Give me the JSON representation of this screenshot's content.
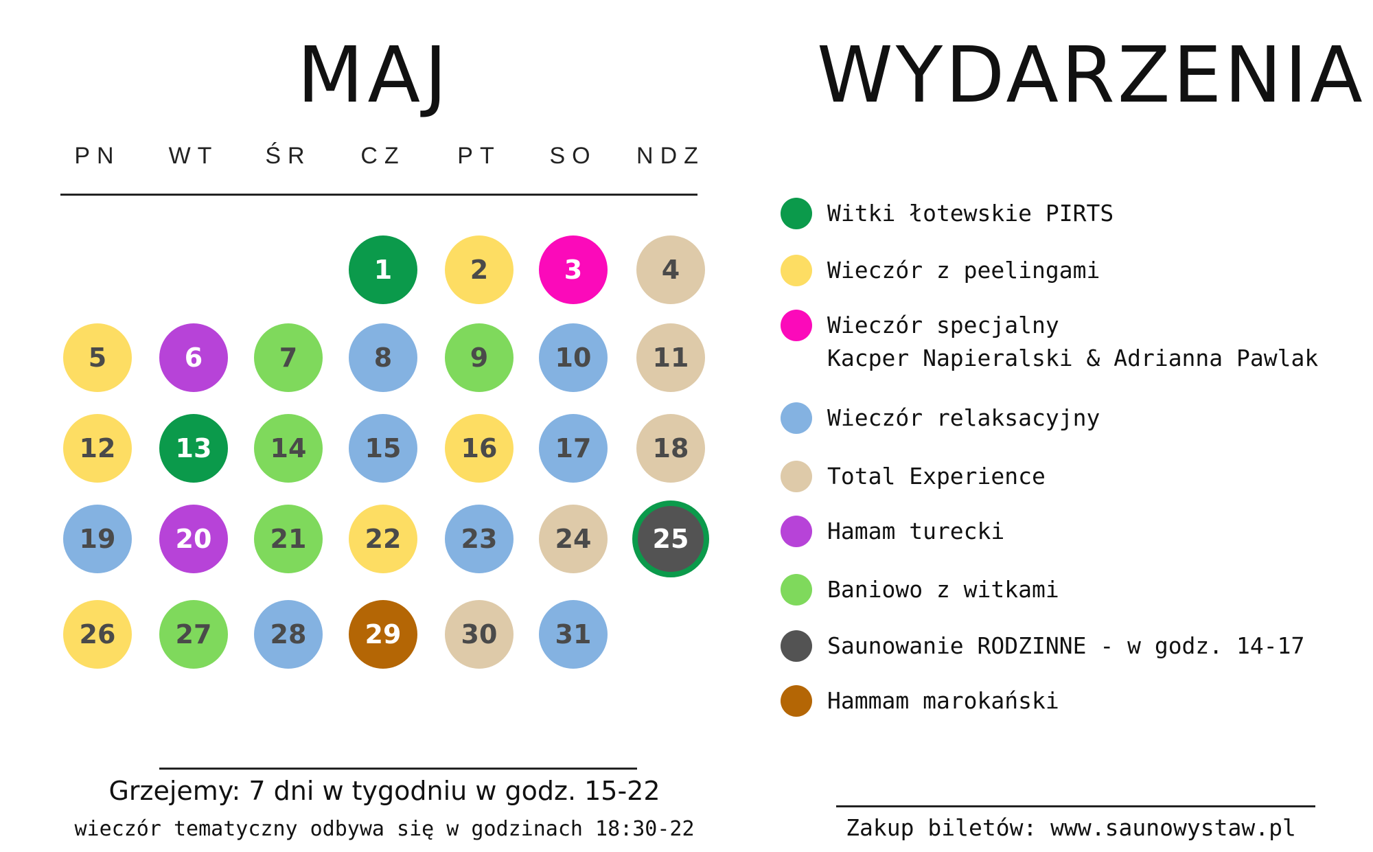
{
  "month_title": "MAJ",
  "events_title": "WYDARZENIA",
  "weekdays": [
    "PN",
    "WT",
    "ŚR",
    "CZ",
    "PT",
    "SO",
    "NDZ"
  ],
  "colors": {
    "green_dark": "#0b9a4b",
    "yellow": "#fddd63",
    "magenta": "#fb0aba",
    "blue": "#84b2e1",
    "beige": "#decaa9",
    "purple": "#b743d8",
    "green_light": "#7fd95c",
    "gray_dark": "#535353",
    "brown": "#b46605"
  },
  "days": [
    {
      "day": "1",
      "color": "green_dark"
    },
    {
      "day": "2",
      "color": "yellow"
    },
    {
      "day": "3",
      "color": "magenta"
    },
    {
      "day": "4",
      "color": "beige"
    },
    {
      "day": "5",
      "color": "yellow"
    },
    {
      "day": "6",
      "color": "purple"
    },
    {
      "day": "7",
      "color": "green_light"
    },
    {
      "day": "8",
      "color": "blue"
    },
    {
      "day": "9",
      "color": "green_light"
    },
    {
      "day": "10",
      "color": "blue"
    },
    {
      "day": "11",
      "color": "beige"
    },
    {
      "day": "12",
      "color": "yellow"
    },
    {
      "day": "13",
      "color": "green_dark"
    },
    {
      "day": "14",
      "color": "green_light"
    },
    {
      "day": "15",
      "color": "blue"
    },
    {
      "day": "16",
      "color": "yellow"
    },
    {
      "day": "17",
      "color": "blue"
    },
    {
      "day": "18",
      "color": "beige"
    },
    {
      "day": "19",
      "color": "blue"
    },
    {
      "day": "20",
      "color": "purple"
    },
    {
      "day": "21",
      "color": "green_light"
    },
    {
      "day": "22",
      "color": "yellow"
    },
    {
      "day": "23",
      "color": "blue"
    },
    {
      "day": "24",
      "color": "beige"
    },
    {
      "day": "25",
      "color": "gray_dark",
      "ring": "green_dark"
    },
    {
      "day": "26",
      "color": "yellow"
    },
    {
      "day": "27",
      "color": "green_light"
    },
    {
      "day": "28",
      "color": "blue"
    },
    {
      "day": "29",
      "color": "brown"
    },
    {
      "day": "30",
      "color": "beige"
    },
    {
      "day": "31",
      "color": "blue"
    }
  ],
  "legend": [
    {
      "color": "green_dark",
      "lines": [
        "Witki łotewskie PIRTS"
      ]
    },
    {
      "color": "yellow",
      "lines": [
        "Wieczór z peelingami"
      ]
    },
    {
      "color": "magenta",
      "lines": [
        "Wieczór specjalny",
        "Kacper Napieralski & Adrianna Pawlak"
      ]
    },
    {
      "color": "blue",
      "lines": [
        "Wieczór relaksacyjny"
      ]
    },
    {
      "color": "beige",
      "lines": [
        "Total Experience"
      ]
    },
    {
      "color": "purple",
      "lines": [
        "Hamam turecki"
      ]
    },
    {
      "color": "green_light",
      "lines": [
        "Baniowo z witkami"
      ]
    },
    {
      "color": "gray_dark",
      "lines": [
        "Saunowanie RODZINNE - w godz. 14-17"
      ]
    },
    {
      "color": "brown",
      "lines": [
        "Hammam marokański"
      ]
    }
  ],
  "footer": {
    "hours": "Grzejemy: 7 dni w tygodniu w godz. 15-22",
    "thematic": "wieczór tematyczny odbywa się w godzinach 18:30-22",
    "tickets": "Zakup biletów: www.saunowystaw.pl"
  }
}
